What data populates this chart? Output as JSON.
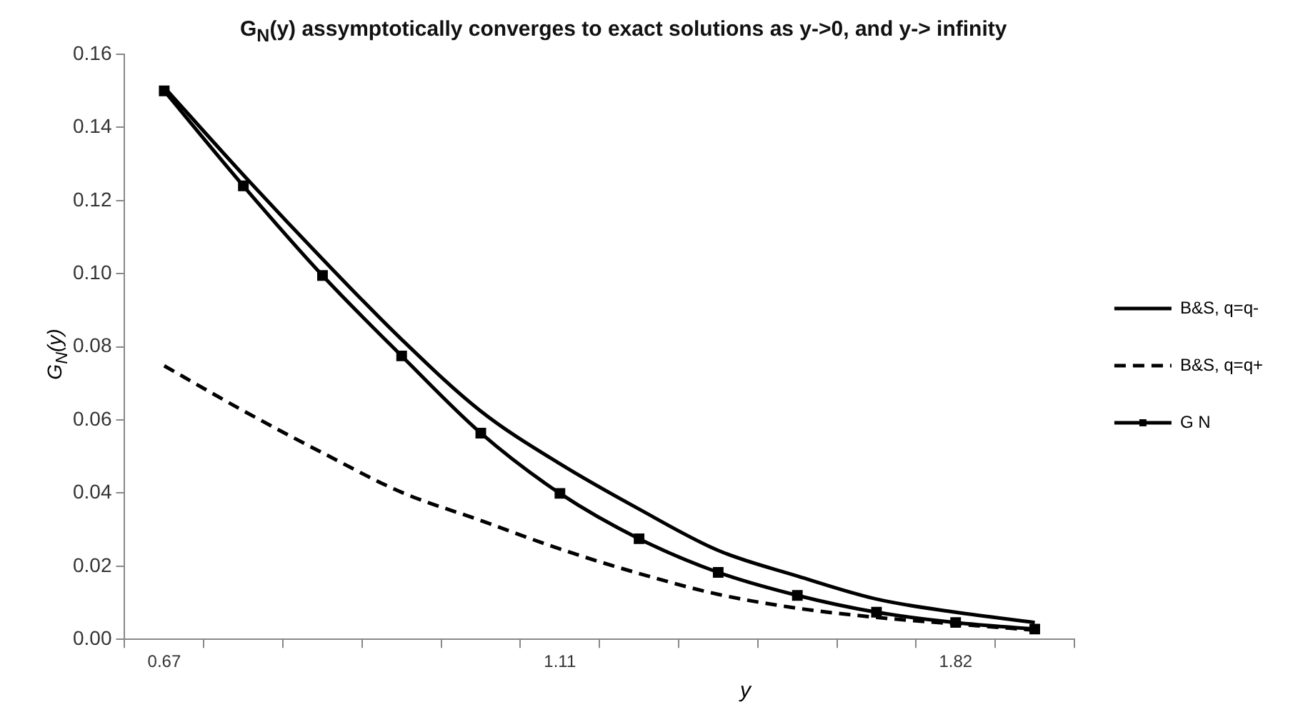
{
  "chart_data": {
    "type": "line",
    "title": "G$_{N}$(y)  assymptotically converges to exact solutions as y->0, and y-> infinity",
    "xlabel": "y",
    "ylabel": "G$_{N}$(y)",
    "categories": [
      "0.67",
      null,
      null,
      null,
      null,
      "1.11",
      null,
      null,
      null,
      null,
      "1.82",
      null
    ],
    "series": [
      {
        "name": "B&S, q=q-",
        "color": "#000000",
        "line_style": "solid",
        "marker": "none",
        "values": [
          0.151,
          0.127,
          0.104,
          0.082,
          0.0624,
          0.048,
          0.0356,
          0.0243,
          0.0173,
          0.011,
          0.0074,
          0.0046
        ]
      },
      {
        "name": "B&S, q=q+",
        "color": "#000000",
        "line_style": "dashed",
        "marker": "none",
        "values": [
          0.0748,
          0.0625,
          0.051,
          0.0402,
          0.0325,
          0.0247,
          0.018,
          0.0123,
          0.0085,
          0.006,
          0.0042,
          0.0025
        ]
      },
      {
        "name": "G N",
        "color": "#000000",
        "line_style": "solid",
        "marker": "square",
        "values": [
          0.15,
          0.124,
          0.0995,
          0.0775,
          0.0564,
          0.0399,
          0.0275,
          0.0183,
          0.012,
          0.0074,
          0.0046,
          0.0028
        ]
      }
    ],
    "ylim": [
      0,
      0.16
    ],
    "yticks": [
      {
        "value": 0,
        "label": "0.00"
      },
      {
        "value": 0.02,
        "label": "0.02"
      },
      {
        "value": 0.04,
        "label": "0.04"
      },
      {
        "value": 0.06,
        "label": "0.06"
      },
      {
        "value": 0.08,
        "label": "0.08"
      },
      {
        "value": 0.1,
        "label": "0.10"
      },
      {
        "value": 0.12,
        "label": "0.12"
      },
      {
        "value": 0.14,
        "label": "0.14"
      },
      {
        "value": 0.16,
        "label": "0.16"
      }
    ],
    "grid": false,
    "legend": "right"
  }
}
